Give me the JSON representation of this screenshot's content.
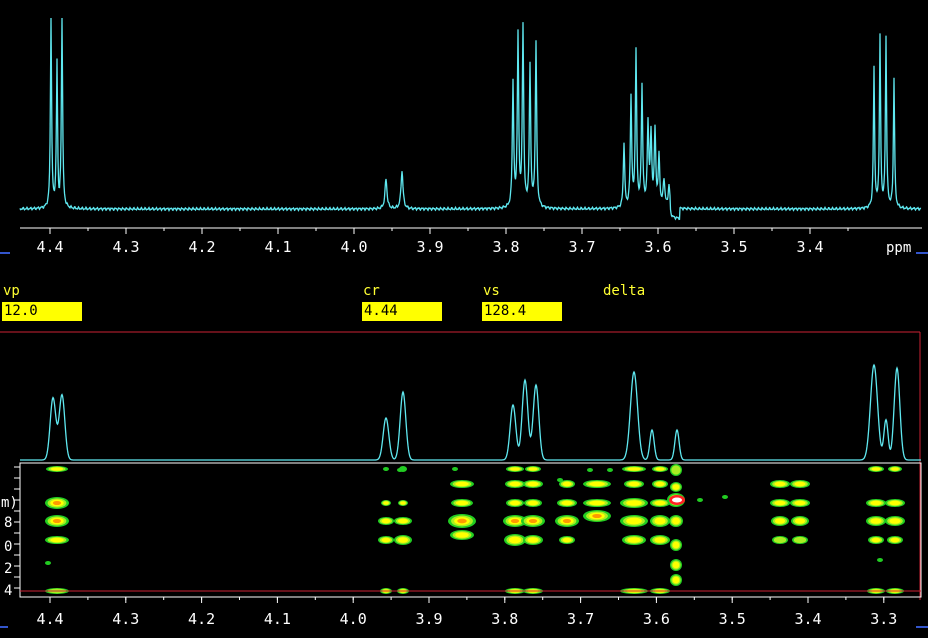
{
  "top_axis": {
    "ticks": [
      "4.4",
      "4.3",
      "4.2",
      "4.1",
      "4.0",
      "3.9",
      "3.8",
      "3.7",
      "3.6",
      "3.5",
      "3.4"
    ],
    "unit": "ppm"
  },
  "params": {
    "vp": {
      "label": "vp",
      "value": "12.0"
    },
    "cr": {
      "label": "cr",
      "value": "4.44"
    },
    "vs": {
      "label": "vs",
      "value": "128.4"
    },
    "delta": {
      "label": "delta"
    }
  },
  "bottom_axis": {
    "ticks": [
      "4.4",
      "4.3",
      "4.2",
      "4.1",
      "4.0",
      "3.9",
      "3.8",
      "3.7",
      "3.6",
      "3.5",
      "3.4",
      "3.3"
    ]
  },
  "f1_axis_labels": [
    "m)",
    "8",
    "0",
    "2",
    "4"
  ],
  "colors": {
    "trace": "#5fe8f0",
    "frame": "#ffffff",
    "cursor": "#cc2233",
    "field": "#ffff00",
    "contour_low": "#22cc22",
    "contour_mid": "#ffff00",
    "contour_high": "#ff9900",
    "contour_peak": "#ff2222"
  }
}
